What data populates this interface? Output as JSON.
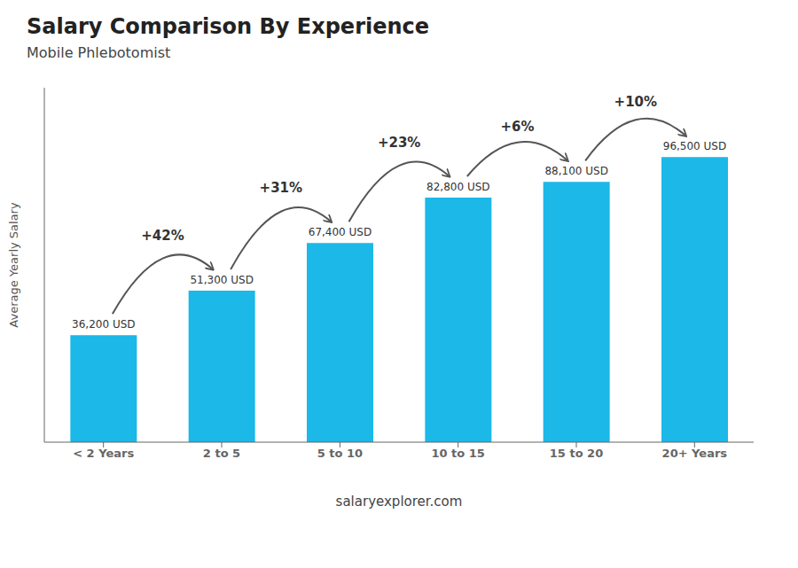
{
  "chart_data": {
    "type": "bar",
    "title": "Salary Comparison By Experience",
    "subtitle": "Mobile Phlebotomist",
    "ylabel": "Average Yearly Salary",
    "footer": "salaryexplorer.com",
    "categories": [
      "< 2 Years",
      "2 to 5",
      "5 to 10",
      "10 to 15",
      "15 to 20",
      "20+ Years"
    ],
    "values": [
      36200,
      51300,
      67400,
      82800,
      88100,
      96500
    ],
    "value_labels": [
      "36,200 USD",
      "51,300 USD",
      "67,400 USD",
      "82,800 USD",
      "88,100 USD",
      "96,500 USD"
    ],
    "data_labels": true,
    "annotations": [
      "+42%",
      "+31%",
      "+23%",
      "+6%",
      "+10%"
    ],
    "color": "#1BB8E8",
    "ylim": [
      0,
      120000
    ],
    "tick_labels": "x",
    "grid": false
  }
}
